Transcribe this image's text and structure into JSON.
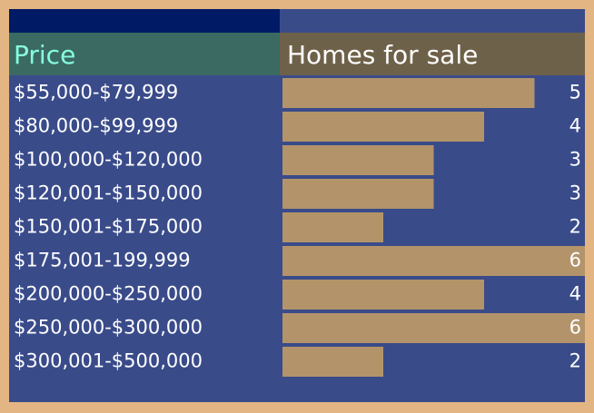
{
  "chart_data": {
    "type": "bar",
    "orientation": "horizontal",
    "category_header": "Price",
    "value_header": "Homes for sale",
    "categories": [
      "$55,000-$79,999",
      "$80,000-$99,999",
      "$100,000-$120,000",
      "$120,001-$150,000",
      "$150,001-$175,000",
      "$175,001-199,999",
      "$200,000-$250,000",
      "$250,000-$300,000",
      "$300,001-$500,000"
    ],
    "values": [
      5,
      4,
      3,
      3,
      2,
      6,
      4,
      6,
      2
    ],
    "color": "#b3946a"
  }
}
